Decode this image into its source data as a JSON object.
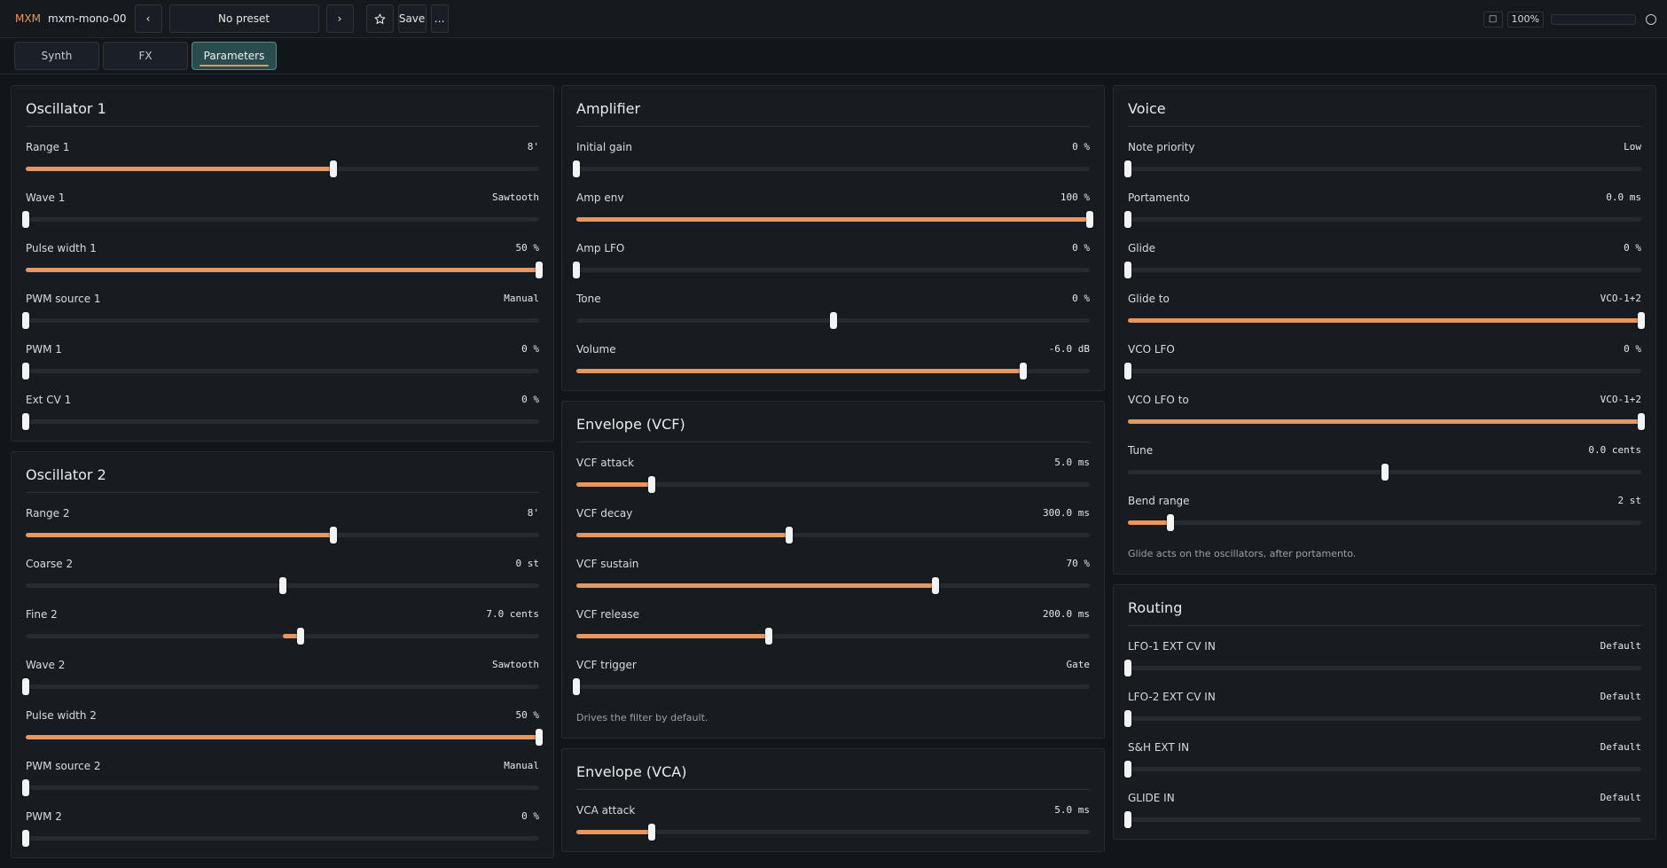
{
  "header": {
    "brand": "MXM",
    "plugin_name": "mxm-mono-00",
    "prev": "‹",
    "next": "›",
    "preset": "No preset",
    "favorite_icon": "star-icon",
    "save": "Save",
    "more": "…",
    "window_icon": "□",
    "zoom": "100%"
  },
  "tabs": [
    {
      "label": "Synth"
    },
    {
      "label": "FX"
    },
    {
      "label": "Parameters",
      "active": true
    }
  ],
  "panels": {
    "osc1": {
      "title": "Oscillator 1",
      "rows": [
        {
          "label": "Range 1",
          "value": "8'",
          "level": 0.6
        },
        {
          "label": "Wave 1",
          "value": "Sawtooth",
          "level": 0
        },
        {
          "label": "Pulse width 1",
          "value": "50 %",
          "level": 1
        },
        {
          "label": "PWM source 1",
          "value": "Manual",
          "level": 0
        },
        {
          "label": "PWM 1",
          "value": "0 %",
          "level": 0
        },
        {
          "label": "Ext CV 1",
          "value": "0 %",
          "level": 0
        }
      ]
    },
    "osc2": {
      "title": "Oscillator 2",
      "rows": [
        {
          "label": "Range 2",
          "value": "8'",
          "level": 0.6
        },
        {
          "label": "Coarse 2",
          "value": "0 st",
          "level": 0.5,
          "bipolar": true
        },
        {
          "label": "Fine 2",
          "value": "7.0 cents",
          "level": 0.535,
          "bipolar": true
        },
        {
          "label": "Wave 2",
          "value": "Sawtooth",
          "level": 0
        },
        {
          "label": "Pulse width 2",
          "value": "50 %",
          "level": 1
        },
        {
          "label": "PWM source 2",
          "value": "Manual",
          "level": 0
        },
        {
          "label": "PWM 2",
          "value": "0 %",
          "level": 0
        }
      ]
    },
    "amp": {
      "title": "Amplifier",
      "rows": [
        {
          "label": "Initial gain",
          "value": "0 %",
          "level": 0
        },
        {
          "label": "Amp env",
          "value": "100 %",
          "level": 1
        },
        {
          "label": "Amp LFO",
          "value": "0 %",
          "level": 0
        },
        {
          "label": "Tone",
          "value": "0 %",
          "level": 0.5,
          "bipolar": true
        },
        {
          "label": "Volume",
          "value": "-6.0 dB",
          "level": 0.87
        }
      ]
    },
    "envvcf": {
      "title": "Envelope (VCF)",
      "hint": "Drives the filter by default.",
      "rows": [
        {
          "label": "VCF attack",
          "value": "5.0 ms",
          "level": 0.147
        },
        {
          "label": "VCF decay",
          "value": "300.0 ms",
          "level": 0.415
        },
        {
          "label": "VCF sustain",
          "value": "70 %",
          "level": 0.7
        },
        {
          "label": "VCF release",
          "value": "200.0 ms",
          "level": 0.375
        },
        {
          "label": "VCF trigger",
          "value": "Gate",
          "level": 0
        }
      ]
    },
    "envvca": {
      "title": "Envelope (VCA)",
      "rows": [
        {
          "label": "VCA attack",
          "value": "5.0 ms",
          "level": 0.147
        }
      ]
    },
    "voice": {
      "title": "Voice",
      "hint": "Glide acts on the oscillators, after portamento.",
      "rows": [
        {
          "label": "Note priority",
          "value": "Low",
          "level": 0
        },
        {
          "label": "Portamento",
          "value": "0.0 ms",
          "level": 0
        },
        {
          "label": "Glide",
          "value": "0 %",
          "level": 0
        },
        {
          "label": "Glide to",
          "value": "VCO-1+2",
          "level": 1
        },
        {
          "label": "VCO LFO",
          "value": "0 %",
          "level": 0
        },
        {
          "label": "VCO LFO to",
          "value": "VCO-1+2",
          "level": 1
        },
        {
          "label": "Tune",
          "value": "0.0 cents",
          "level": 0.5,
          "bipolar": true
        },
        {
          "label": "Bend range",
          "value": "2 st",
          "level": 0.083
        }
      ]
    },
    "routing": {
      "title": "Routing",
      "rows": [
        {
          "label": "LFO-1 EXT CV IN",
          "value": "Default",
          "level": 0
        },
        {
          "label": "LFO-2 EXT CV IN",
          "value": "Default",
          "level": 0
        },
        {
          "label": "S&H EXT IN",
          "value": "Default",
          "level": 0
        },
        {
          "label": "GLIDE IN",
          "value": "Default",
          "level": 0
        }
      ]
    }
  },
  "colors": {
    "accent": "#e7965f",
    "active_tab": "#2a4c4f",
    "panel_bg": "#181c21"
  }
}
